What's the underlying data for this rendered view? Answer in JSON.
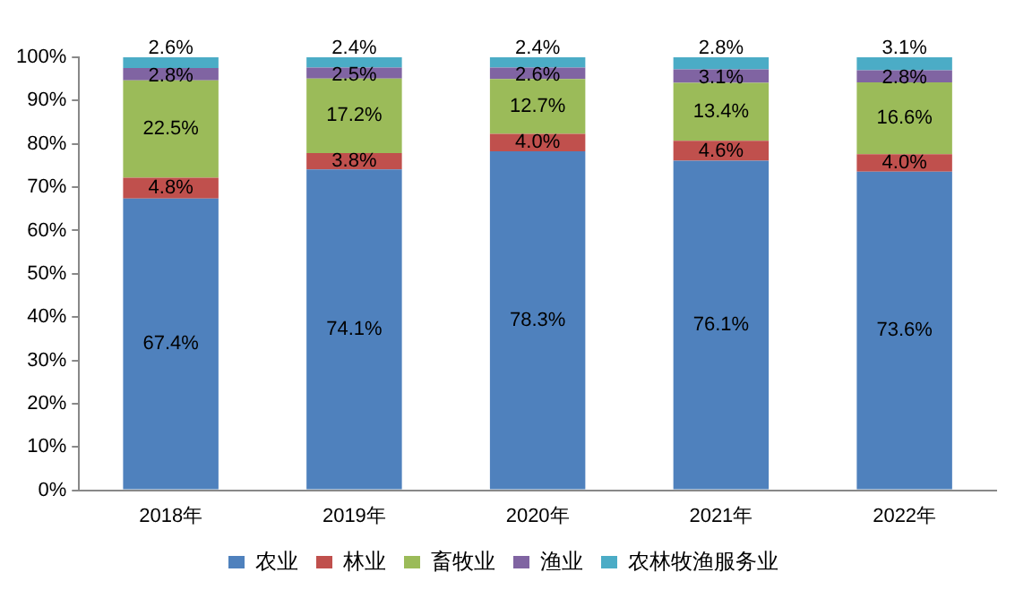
{
  "chart_data": {
    "type": "bar",
    "stacked": true,
    "categories": [
      "2018年",
      "2019年",
      "2020年",
      "2021年",
      "2022年"
    ],
    "series": [
      {
        "name": "农业",
        "color": "#4f81bd",
        "values": [
          67.4,
          74.1,
          78.3,
          76.1,
          73.6
        ],
        "value_labels": [
          "67.4%",
          "74.1%",
          "78.3%",
          "76.1%",
          "73.6%"
        ]
      },
      {
        "name": "林业",
        "color": "#c0504d",
        "values": [
          4.8,
          3.8,
          4.0,
          4.6,
          4.0
        ],
        "value_labels": [
          "4.8%",
          "3.8%",
          "4.0%",
          "4.6%",
          "4.0%"
        ]
      },
      {
        "name": "畜牧业",
        "color": "#9bbb59",
        "values": [
          22.5,
          17.2,
          12.7,
          13.4,
          16.6
        ],
        "value_labels": [
          "22.5%",
          "17.2%",
          "12.7%",
          "13.4%",
          "16.6%"
        ]
      },
      {
        "name": "渔业",
        "color": "#8064a2",
        "values": [
          2.8,
          2.5,
          2.6,
          3.1,
          2.8
        ],
        "value_labels": [
          "2.8%",
          "2.5%",
          "2.6%",
          "3.1%",
          "2.8%"
        ]
      },
      {
        "name": "农林牧渔服务业",
        "color": "#4bacc6",
        "values": [
          2.6,
          2.4,
          2.4,
          2.8,
          3.1
        ],
        "value_labels": [
          "2.6%",
          "2.4%",
          "2.4%",
          "2.8%",
          "3.1%"
        ]
      }
    ],
    "ylim": [
      0,
      100
    ],
    "yticks": [
      {
        "value": 0,
        "label": "0%"
      },
      {
        "value": 10,
        "label": "10%"
      },
      {
        "value": 20,
        "label": "20%"
      },
      {
        "value": 30,
        "label": "30%"
      },
      {
        "value": 40,
        "label": "40%"
      },
      {
        "value": 50,
        "label": "50%"
      },
      {
        "value": 60,
        "label": "60%"
      },
      {
        "value": 70,
        "label": "70%"
      },
      {
        "value": 80,
        "label": "80%"
      },
      {
        "value": 90,
        "label": "90%"
      },
      {
        "value": 100,
        "label": "100%"
      }
    ],
    "grid": false,
    "legend": "bottom",
    "marker": "square"
  }
}
